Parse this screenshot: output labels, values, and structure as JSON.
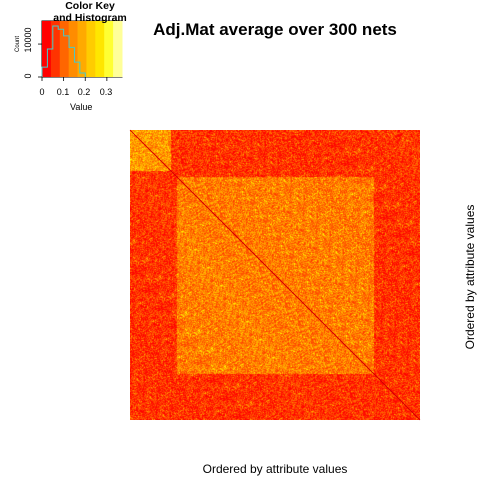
{
  "chart_data": {
    "type": "heatmap",
    "title": "Adj.Mat average over 300 nets",
    "xlabel": "Ordered by attribute values",
    "ylabel": "Ordered by attribute values",
    "color_key": {
      "title_line1": "Color Key",
      "title_line2": "and Histogram",
      "xlabel": "Value",
      "ylabel": "Count",
      "x_ticks": [
        "0",
        "0.1",
        "0.2",
        "0.3"
      ],
      "x_tick_values": [
        0,
        0.1,
        0.2,
        0.3
      ],
      "y_ticks": [
        "0",
        "10000"
      ],
      "y_tick_values": [
        0,
        10000
      ],
      "value_range": [
        0,
        0.37
      ],
      "palette": [
        "#ff0000",
        "#ff3300",
        "#ff6600",
        "#ff8c00",
        "#ffaa00",
        "#ffcc00",
        "#ffe600",
        "#ffff33",
        "#ffff99"
      ],
      "histogram": {
        "bin_edges": [
          0,
          0.025,
          0.05,
          0.075,
          0.1,
          0.125,
          0.15,
          0.175,
          0.2
        ],
        "counts": [
          3000,
          8500,
          15500,
          14500,
          12500,
          9000,
          4500,
          1200
        ]
      }
    },
    "structure": {
      "core_block_fraction": [
        0.16,
        0.84
      ],
      "top_left_block_fraction": [
        0,
        0.14
      ],
      "outer_mean": 0.05,
      "core_mean": 0.13,
      "top_left_mean": 0.16,
      "diagonal_value": 0.0,
      "grid": false
    }
  }
}
